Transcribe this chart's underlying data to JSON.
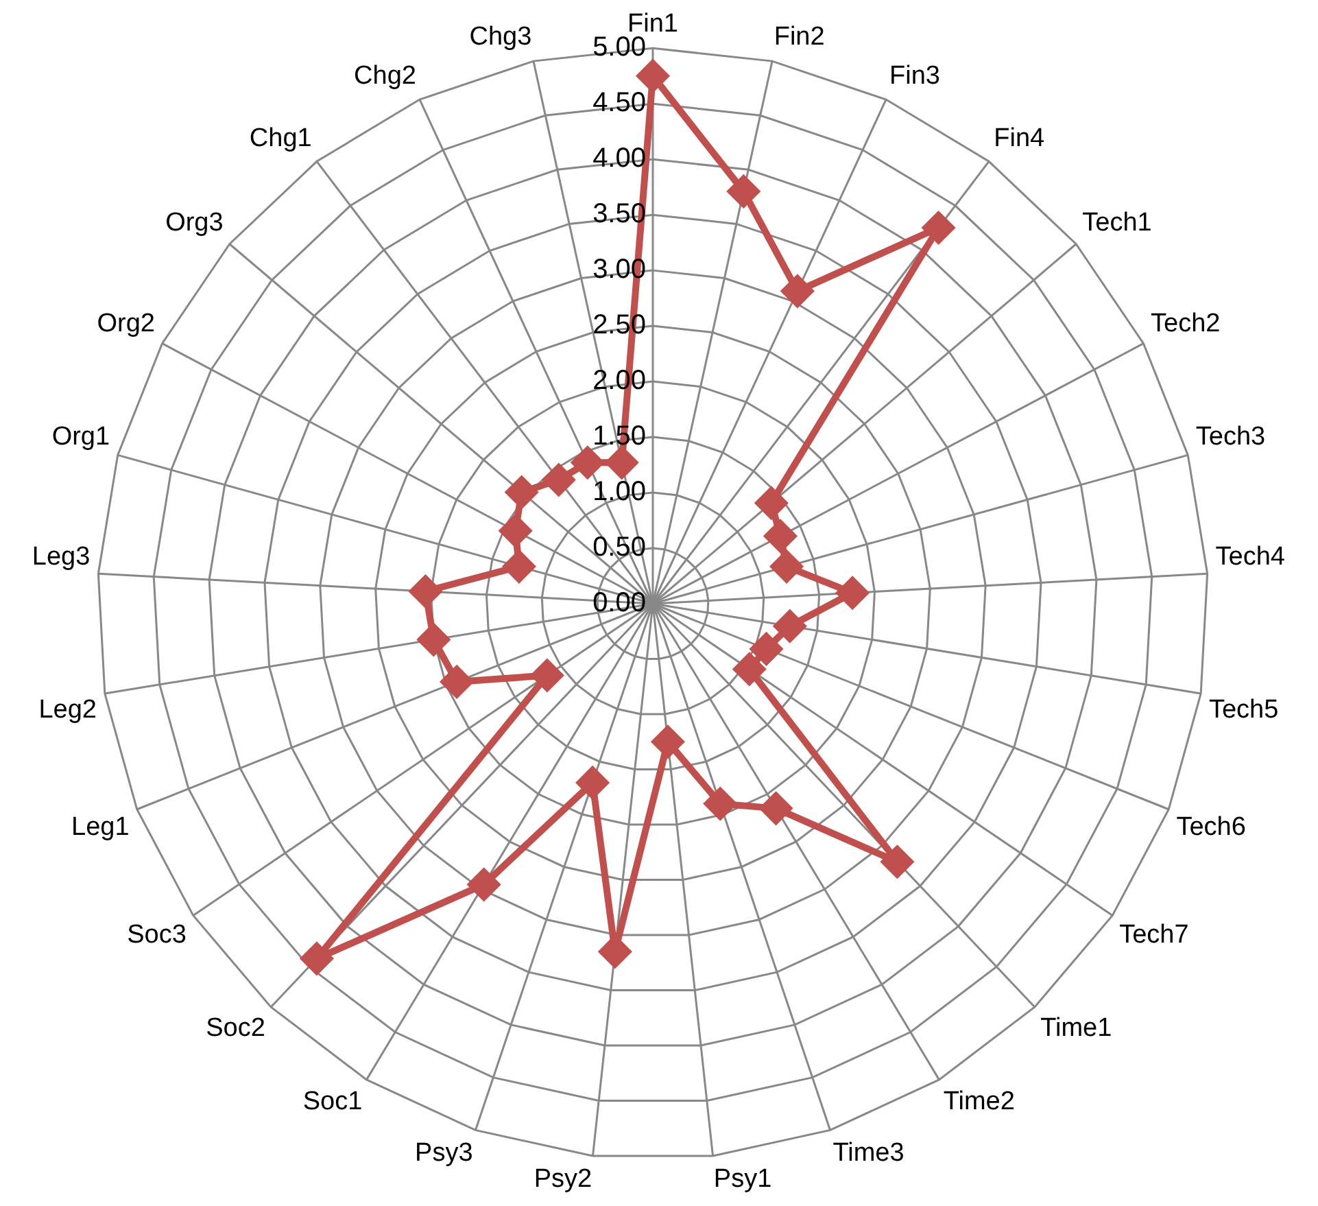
{
  "chart_data": {
    "type": "radar",
    "categories": [
      "Fin1",
      "Fin2",
      "Fin3",
      "Fin4",
      "Tech1",
      "Tech2",
      "Tech3",
      "Tech4",
      "Tech5",
      "Tech6",
      "Tech7",
      "Time1",
      "Time2",
      "Time3",
      "Psy1",
      "Psy2",
      "Psy3",
      "Soc1",
      "Soc2",
      "Soc3",
      "Leg1",
      "Leg2",
      "Leg3",
      "Org1",
      "Org2",
      "Org3",
      "Chg1",
      "Chg2",
      "Chg3"
    ],
    "series": [
      {
        "color": "#c0504d",
        "values": [
          4.75,
          3.8,
          3.1,
          4.25,
          1.4,
          1.3,
          1.25,
          1.8,
          1.25,
          1.1,
          1.05,
          3.2,
          2.15,
          1.9,
          1.25,
          3.15,
          1.7,
          2.95,
          4.4,
          1.15,
          1.9,
          2.0,
          2.05,
          1.25,
          1.4,
          1.55,
          1.4,
          1.4,
          1.3
        ]
      }
    ],
    "ylim": [
      0,
      5
    ],
    "yticks": [
      {
        "value": 0,
        "label": "0.00"
      },
      {
        "value": 0.5,
        "label": "0.50"
      },
      {
        "value": 1,
        "label": "1.00"
      },
      {
        "value": 1.5,
        "label": "1.50"
      },
      {
        "value": 2,
        "label": "2.00"
      },
      {
        "value": 2.5,
        "label": "2.50"
      },
      {
        "value": 3,
        "label": "3.00"
      },
      {
        "value": 3.5,
        "label": "3.50"
      },
      {
        "value": 4,
        "label": "4.00"
      },
      {
        "value": 4.5,
        "label": "4.50"
      },
      {
        "value": 5,
        "label": "5.00"
      }
    ],
    "grid": true,
    "legend": false,
    "marker": "diamond",
    "line_style": "solid"
  }
}
